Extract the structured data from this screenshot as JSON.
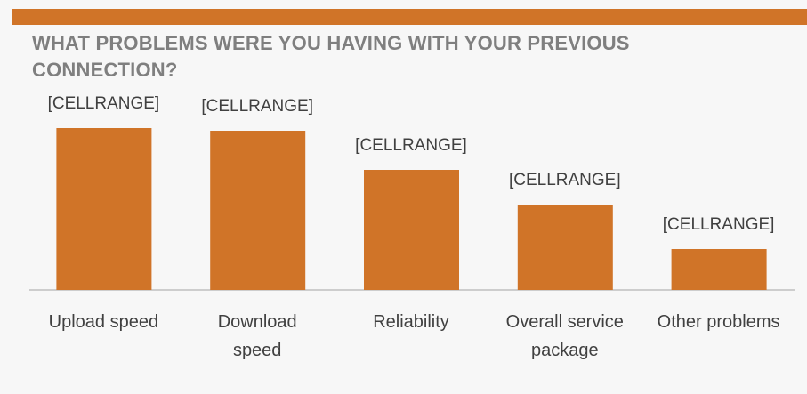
{
  "chart_data": {
    "type": "bar",
    "title": "WHAT PROBLEMS WERE YOU HAVING WITH YOUR PREVIOUS CONNECTION?",
    "categories": [
      "Upload speed",
      "Download speed",
      "Reliability",
      "Overall service package",
      "Other problems"
    ],
    "values": [
      182,
      179,
      135,
      96,
      46
    ],
    "value_labels": [
      "[CELLRANGE]",
      "[CELLRANGE]",
      "[CELLRANGE]",
      "[CELLRANGE]",
      "[CELLRANGE]"
    ],
    "color": "#d07428",
    "ylim": [
      0,
      200
    ]
  }
}
